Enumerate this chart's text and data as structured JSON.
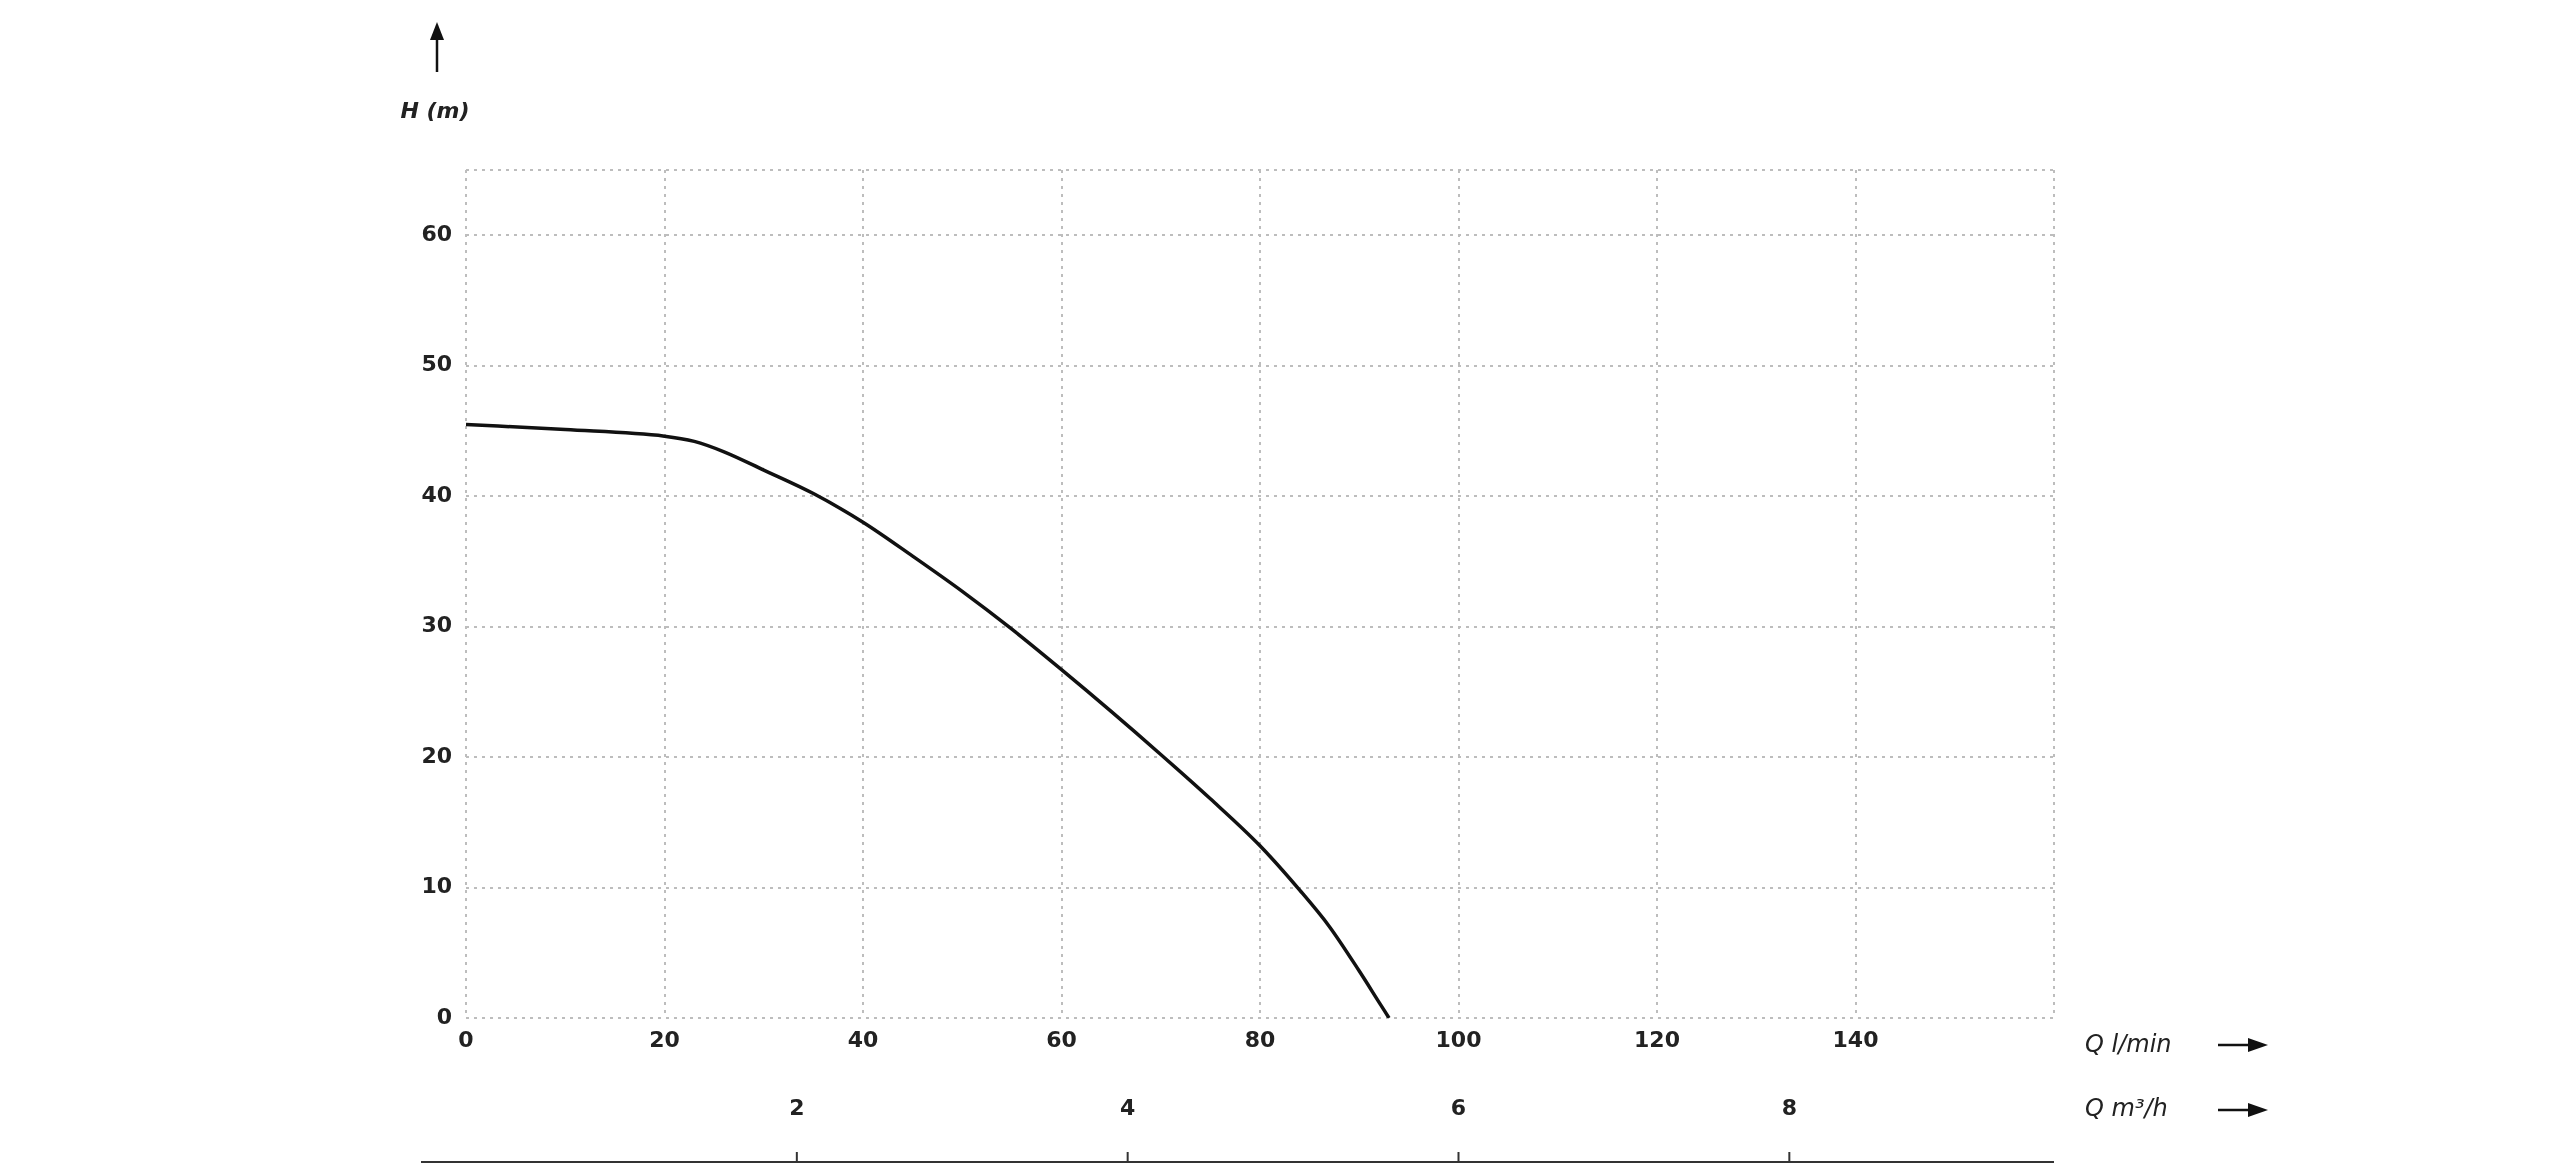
{
  "chart_data": {
    "type": "line",
    "xlabel": "Q l/min",
    "x2label": "Q m³/h",
    "ylabel": "H (m)",
    "x": [
      0,
      10,
      20,
      23,
      26,
      30,
      35,
      40,
      45,
      50,
      55,
      60,
      65,
      70,
      75,
      80,
      84,
      87,
      90,
      92,
      93
    ],
    "series": [
      {
        "color": "#111111",
        "values": [
          45.5,
          45.1,
          44.6,
          44.2,
          43.4,
          42,
          40.2,
          38,
          35.4,
          32.7,
          29.8,
          26.7,
          23.5,
          20.2,
          16.8,
          13.2,
          9.8,
          7,
          3.6,
          1.2,
          0
        ]
      }
    ],
    "xlim": [
      0,
      160
    ],
    "xticks": [
      0,
      20,
      40,
      60,
      80,
      100,
      120,
      140,
      {
        "value": 160,
        "label": null
      }
    ],
    "ylim": [
      0,
      65
    ],
    "yticks": [
      0,
      10,
      20,
      30,
      40,
      50,
      60,
      {
        "value": 65,
        "label": null
      }
    ],
    "x2lim": [
      0,
      9.6
    ],
    "x2ticks": [
      2,
      4,
      6,
      8
    ],
    "grid": true,
    "legend": false,
    "marker": "none",
    "line_style": "solid"
  }
}
